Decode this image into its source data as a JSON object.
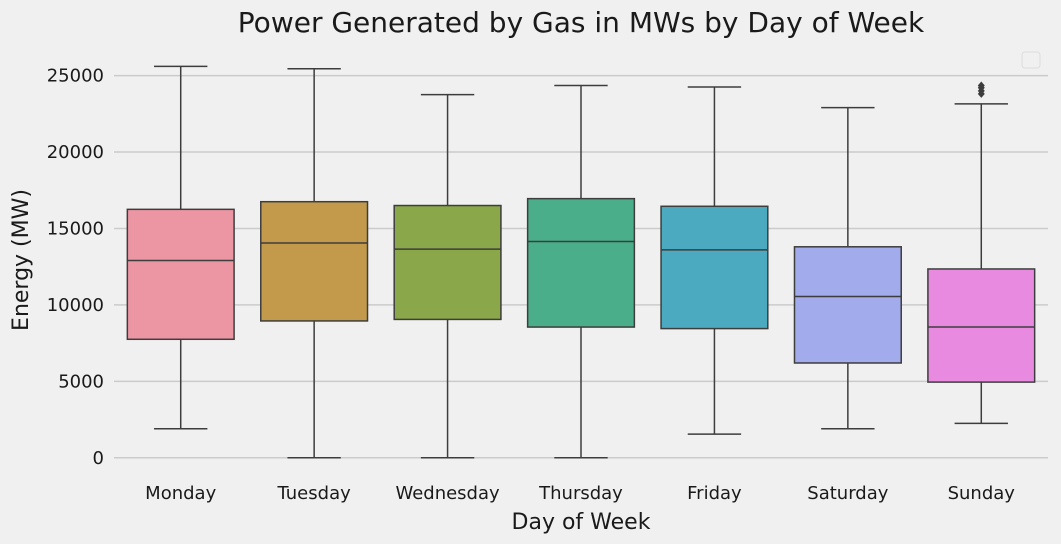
{
  "chart_data": {
    "type": "box",
    "title": "Power Generated by Gas in MWs by Day of Week",
    "xlabel": "Day of Week",
    "ylabel": "Energy (MW)",
    "ylim": [
      -800,
      27000
    ],
    "yticks": [
      0,
      5000,
      10000,
      15000,
      20000,
      25000
    ],
    "grid": true,
    "legend": "top-right (empty)",
    "categories": [
      "Monday",
      "Tuesday",
      "Wednesday",
      "Thursday",
      "Friday",
      "Saturday",
      "Sunday"
    ],
    "boxes": [
      {
        "category": "Monday",
        "whislo": 1900,
        "q1": 7750,
        "med": 12900,
        "q3": 16250,
        "whishi": 25600,
        "fliers": [],
        "color": "#ec96a4"
      },
      {
        "category": "Tuesday",
        "whislo": 0,
        "q1": 8950,
        "med": 14050,
        "q3": 16750,
        "whishi": 25450,
        "fliers": [],
        "color": "#c39a4b"
      },
      {
        "category": "Wednesday",
        "whislo": 0,
        "q1": 9050,
        "med": 13650,
        "q3": 16500,
        "whishi": 23750,
        "fliers": [],
        "color": "#8aa84a"
      },
      {
        "category": "Thursday",
        "whislo": 0,
        "q1": 8550,
        "med": 14150,
        "q3": 16950,
        "whishi": 24350,
        "fliers": [],
        "color": "#4bae8a"
      },
      {
        "category": "Friday",
        "whislo": 1550,
        "q1": 8450,
        "med": 13600,
        "q3": 16450,
        "whishi": 24250,
        "fliers": [],
        "color": "#4baabf"
      },
      {
        "category": "Saturday",
        "whislo": 1900,
        "q1": 6200,
        "med": 10550,
        "q3": 13800,
        "whishi": 22900,
        "fliers": [],
        "color": "#a2abec"
      },
      {
        "category": "Sunday",
        "whislo": 2250,
        "q1": 4950,
        "med": 8550,
        "q3": 12350,
        "whishi": 23150,
        "fliers": [
          23800,
          24000,
          24200,
          24350
        ],
        "color": "#e88be0"
      }
    ]
  }
}
